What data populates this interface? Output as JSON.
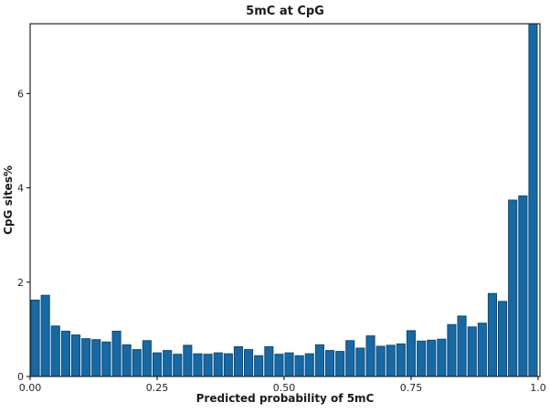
{
  "figure": {
    "background": "#ffffff",
    "spine_color": "#262626"
  },
  "chart_data": {
    "type": "bar",
    "subtype": "histogram",
    "title": "5mC at CpG",
    "xlabel": "Predicted probability of 5mC",
    "ylabel": "CpG sites%",
    "legend": "none",
    "grid": false,
    "bar_color": "#1569a5",
    "bar_edge_color": "#0d4a78",
    "bin_start": 0.0,
    "bin_width": 0.02,
    "xlim": [
      0,
      1.0036
    ],
    "ylim": [
      0,
      7.48
    ],
    "x_tick_values": [
      0.0,
      0.25,
      0.5,
      0.75,
      1.0
    ],
    "x_tick_labels": [
      "0.00",
      "0.25",
      "0.50",
      "0.75",
      "1.0"
    ],
    "y_tick_values": [
      0,
      2,
      4,
      6
    ],
    "y_tick_labels": [
      "0",
      "2",
      "4",
      "6"
    ],
    "values": [
      1.62,
      1.72,
      1.07,
      0.96,
      0.88,
      0.8,
      0.78,
      0.73,
      0.96,
      0.67,
      0.57,
      0.76,
      0.5,
      0.55,
      0.47,
      0.66,
      0.48,
      0.47,
      0.5,
      0.48,
      0.63,
      0.57,
      0.44,
      0.63,
      0.47,
      0.5,
      0.44,
      0.48,
      0.67,
      0.55,
      0.53,
      0.76,
      0.6,
      0.86,
      0.64,
      0.66,
      0.69,
      0.97,
      0.75,
      0.77,
      0.79,
      1.1,
      1.28,
      1.05,
      1.13,
      1.76,
      1.59,
      3.74,
      3.83,
      7.5
    ],
    "last_bar_clipped_at_top": true
  }
}
